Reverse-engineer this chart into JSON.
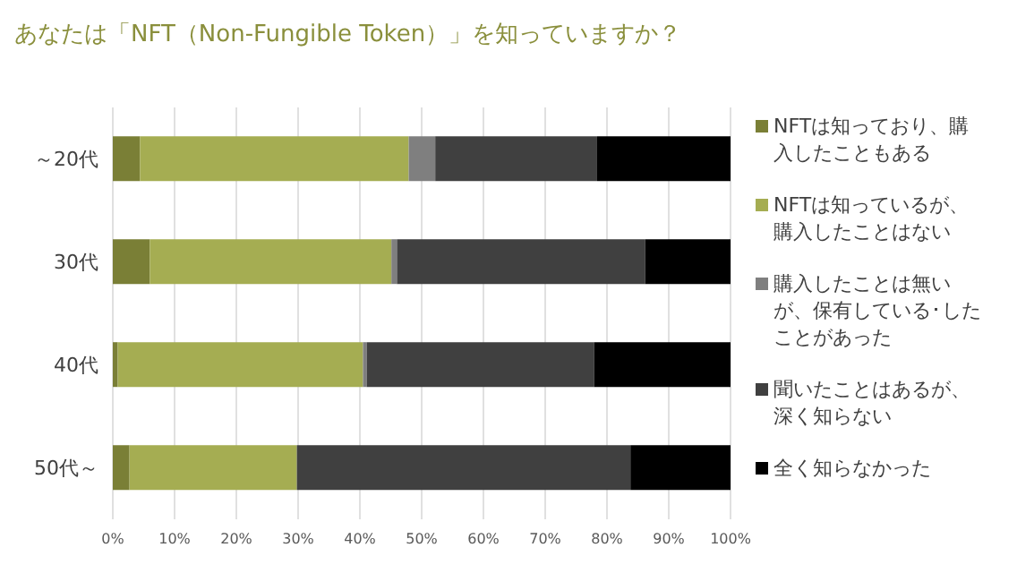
{
  "chart_data": {
    "type": "bar",
    "orientation": "horizontal",
    "stacked": true,
    "title": "あなたは「NFT（Non-Fungible Token）」を知っていますか？",
    "categories": [
      "～20代",
      "30代",
      "40代",
      "50代～"
    ],
    "series": [
      {
        "name": "NFTは知っており、購入したこともある",
        "color": "#7a7f36",
        "values": [
          4.4,
          6.0,
          0.8,
          2.7
        ]
      },
      {
        "name": "NFTは知っているが、購入したことはない",
        "color": "#a5ad52",
        "values": [
          43.5,
          39.1,
          39.7,
          27.1
        ]
      },
      {
        "name": "購入したことは無いが、保有している･したことがあった",
        "color": "#7f7f7f",
        "values": [
          4.3,
          0.9,
          0.6,
          0
        ]
      },
      {
        "name": "聞いたことはあるが、深く知らない",
        "color": "#404040",
        "values": [
          26.2,
          40.2,
          36.8,
          54.0
        ]
      },
      {
        "name": "全く知らなかった",
        "color": "#000000",
        "values": [
          21.6,
          13.8,
          22.1,
          16.2
        ]
      }
    ],
    "xlim": [
      0,
      100
    ],
    "xticks": [
      {
        "value": 0,
        "label": "0%"
      },
      {
        "value": 10,
        "label": "10%"
      },
      {
        "value": 20,
        "label": "20%"
      },
      {
        "value": 30,
        "label": "30%"
      },
      {
        "value": 40,
        "label": "40%"
      },
      {
        "value": 50,
        "label": "50%"
      },
      {
        "value": 60,
        "label": "60%"
      },
      {
        "value": 70,
        "label": "70%"
      },
      {
        "value": 80,
        "label": "80%"
      },
      {
        "value": 90,
        "label": "90%"
      },
      {
        "value": 100,
        "label": "100%"
      }
    ],
    "grid": "x",
    "legend": "right"
  }
}
